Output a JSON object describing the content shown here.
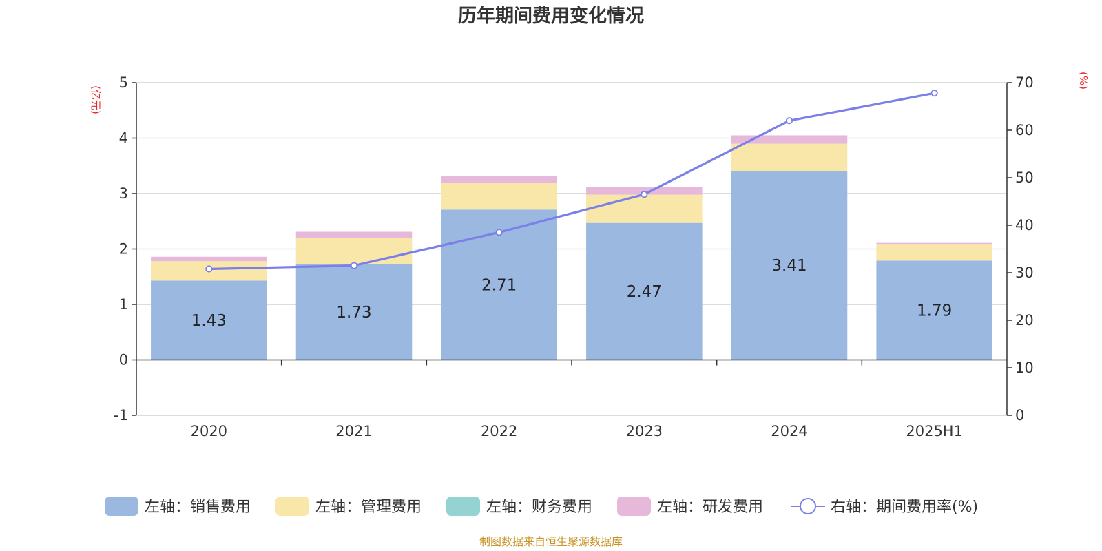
{
  "chart_data": {
    "type": "bar",
    "title": "历年期间费用变化情况",
    "categories": [
      "2020",
      "2021",
      "2022",
      "2023",
      "2024",
      "2025H1"
    ],
    "left_axis": {
      "unit_label": "(亿元)",
      "ylim": [
        -1,
        5
      ],
      "ticks": [
        -1,
        0,
        1,
        2,
        3,
        4,
        5
      ]
    },
    "right_axis": {
      "unit_label": "(%)",
      "ylim": [
        0,
        70
      ],
      "ticks": [
        0,
        10,
        20,
        30,
        40,
        50,
        60,
        70
      ]
    },
    "series": [
      {
        "name": "左轴：销售费用",
        "type": "bar",
        "stack": true,
        "color": "#9bb8e1",
        "values": [
          1.43,
          1.73,
          2.71,
          2.47,
          3.41,
          1.79
        ],
        "show_labels": true
      },
      {
        "name": "左轴：管理费用",
        "type": "bar",
        "stack": true,
        "color": "#f8e7a8",
        "values": [
          0.35,
          0.47,
          0.48,
          0.51,
          0.49,
          0.3
        ]
      },
      {
        "name": "左轴：财务费用",
        "type": "bar",
        "stack": true,
        "color": "#95d3d3",
        "values": [
          0.0,
          0.0,
          0.0,
          0.0,
          0.0,
          0.0
        ]
      },
      {
        "name": "左轴：研发费用",
        "type": "bar",
        "stack": true,
        "color": "#e6b8da",
        "values": [
          0.08,
          0.11,
          0.12,
          0.14,
          0.15,
          0.02
        ]
      },
      {
        "name": "右轴：期间费用率(%)",
        "type": "line",
        "axis": "right",
        "color": "#7b7fe8",
        "values": [
          30.8,
          31.5,
          38.5,
          46.5,
          62.0,
          67.8
        ]
      }
    ],
    "grid": true,
    "legend_position": "bottom"
  },
  "source_note": "制图数据来自恒生聚源数据库"
}
